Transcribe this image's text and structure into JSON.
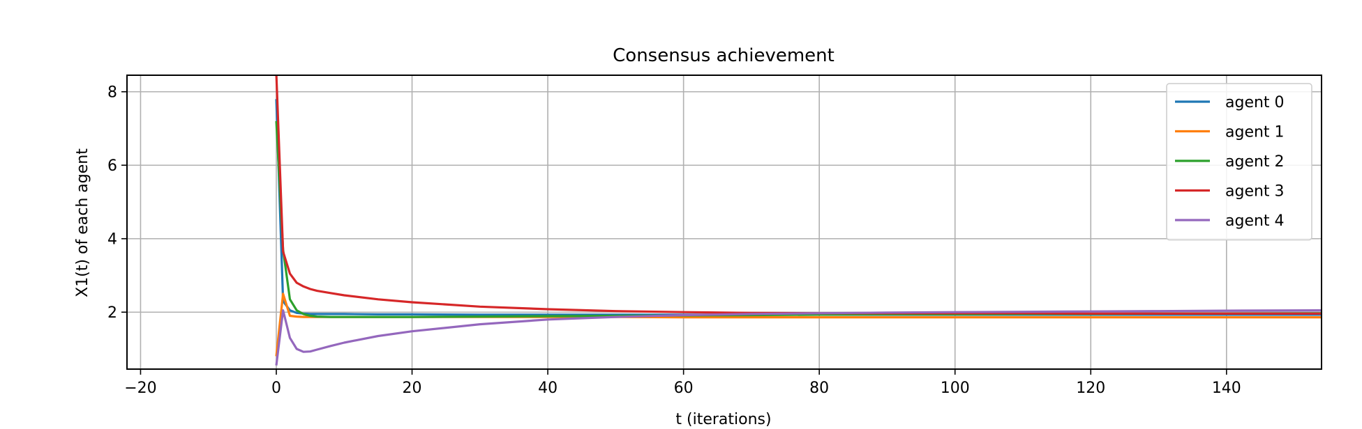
{
  "chart_data": {
    "type": "line",
    "title": "Consensus achievement",
    "xlabel": "t (iterations)",
    "ylabel": "X1(t) of each agent",
    "xlim": [
      -22,
      154
    ],
    "ylim": [
      0.45,
      8.45
    ],
    "xticks": [
      -20,
      0,
      20,
      40,
      60,
      80,
      100,
      120,
      140
    ],
    "yticks": [
      2,
      4,
      6,
      8
    ],
    "grid": true,
    "legend_position": "upper right",
    "x": [
      0,
      1,
      2,
      3,
      4,
      5,
      6,
      8,
      10,
      15,
      20,
      30,
      40,
      50,
      60,
      70,
      80,
      90,
      100,
      110,
      120,
      130,
      140,
      154
    ],
    "series": [
      {
        "name": "agent 0",
        "color": "#1f77b4",
        "values": [
          7.8,
          2.3,
          2.05,
          1.98,
          1.96,
          1.95,
          1.95,
          1.95,
          1.95,
          1.94,
          1.94,
          1.93,
          1.93,
          1.93,
          1.93,
          1.93,
          1.93,
          1.93,
          1.93,
          1.93,
          1.93,
          1.93,
          1.93,
          1.93
        ]
      },
      {
        "name": "agent 1",
        "color": "#ff7f0e",
        "values": [
          0.8,
          2.5,
          1.9,
          1.88,
          1.87,
          1.87,
          1.87,
          1.87,
          1.87,
          1.87,
          1.87,
          1.87,
          1.87,
          1.87,
          1.86,
          1.86,
          1.86,
          1.86,
          1.86,
          1.86,
          1.86,
          1.86,
          1.86,
          1.86
        ]
      },
      {
        "name": "agent 2",
        "color": "#2ca02c",
        "values": [
          7.2,
          3.7,
          2.35,
          2.05,
          1.95,
          1.9,
          1.88,
          1.87,
          1.87,
          1.87,
          1.87,
          1.88,
          1.89,
          1.9,
          1.91,
          1.92,
          1.93,
          1.94,
          1.94,
          1.95,
          1.95,
          1.96,
          1.96,
          1.97
        ]
      },
      {
        "name": "agent 3",
        "color": "#d62728",
        "values": [
          8.5,
          3.65,
          3.05,
          2.8,
          2.7,
          2.63,
          2.58,
          2.52,
          2.46,
          2.35,
          2.27,
          2.15,
          2.08,
          2.03,
          2.0,
          1.98,
          1.97,
          1.97,
          1.97,
          1.97,
          1.96,
          1.96,
          1.96,
          1.96
        ]
      },
      {
        "name": "agent 4",
        "color": "#9467bd",
        "values": [
          0.55,
          2.05,
          1.3,
          1.0,
          0.92,
          0.93,
          0.98,
          1.08,
          1.17,
          1.35,
          1.48,
          1.67,
          1.8,
          1.87,
          1.92,
          1.95,
          1.97,
          1.99,
          2.0,
          2.01,
          2.02,
          2.03,
          2.04,
          2.05
        ]
      }
    ]
  }
}
